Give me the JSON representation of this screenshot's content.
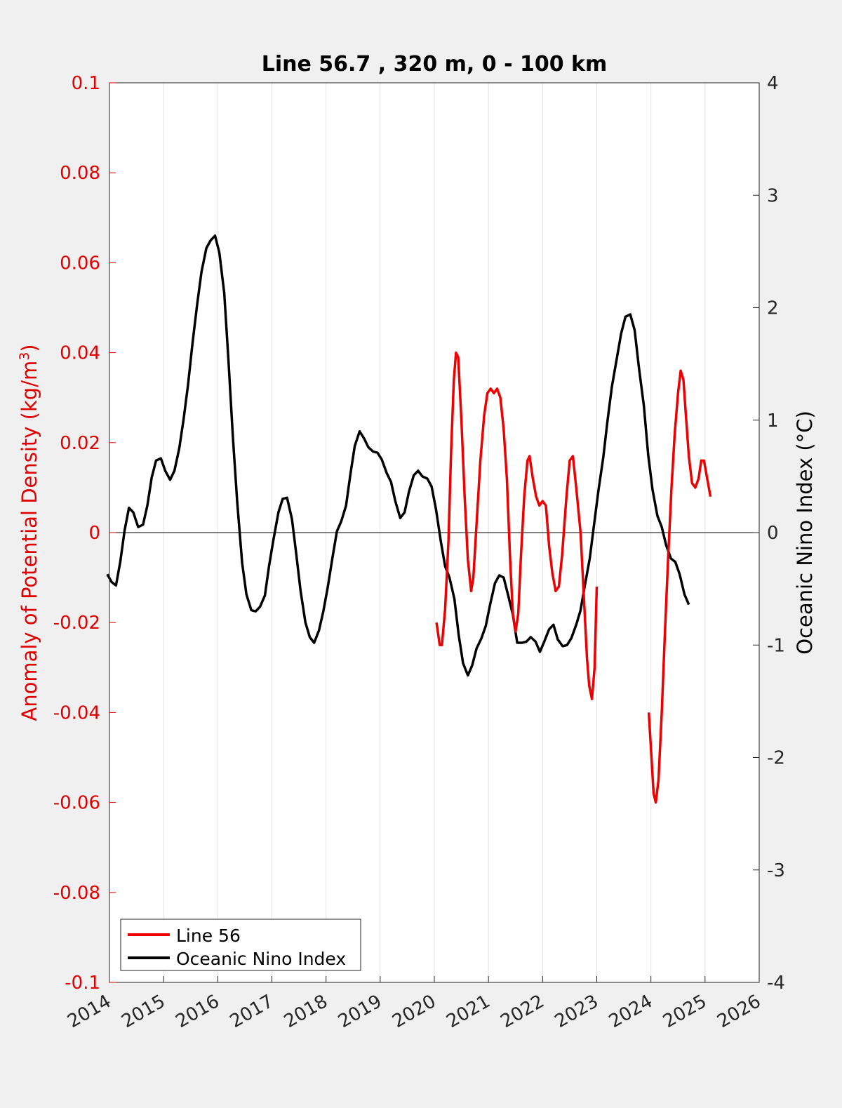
{
  "chart_data": {
    "type": "line",
    "title": "Line 56.7 , 320 m, 0 - 100 km",
    "ylabel_left": "Anomaly of Potential Density (kg/m³)",
    "ylabel_left_base": "Anomaly of Potential Density (kg/m",
    "ylabel_left_sup": "3",
    "ylabel_left_close": ")",
    "ylabel_right": "Oceanic Nino Index (°C)",
    "xlim": [
      2014,
      2026
    ],
    "ylim_left": [
      -0.1,
      0.1
    ],
    "ylim_right": [
      -4,
      4
    ],
    "x_ticks": [
      "2014",
      "2015",
      "2016",
      "2017",
      "2018",
      "2019",
      "2020",
      "2021",
      "2022",
      "2023",
      "2024",
      "2025",
      "2026"
    ],
    "y_left_ticks": [
      "0.1",
      "0.08",
      "0.06",
      "0.04",
      "0.02",
      "0",
      "-0.02",
      "-0.04",
      "-0.06",
      "-0.08",
      "-0.1"
    ],
    "y_right_ticks": [
      "4",
      "3",
      "2",
      "1",
      "0",
      "-1",
      "-2",
      "-3",
      "-4"
    ],
    "grid": "vertical",
    "legend_position": "bottom-left",
    "colors": {
      "left_axis": "#e00000",
      "line56": "#ee0000",
      "oni": "#000000"
    },
    "series": [
      {
        "name": "Line 56",
        "axis": "left",
        "segments": [
          [
            [
              2020.04,
              -0.02
            ],
            [
              2020.1,
              -0.025
            ],
            [
              2020.14,
              -0.025
            ],
            [
              2020.2,
              -0.017
            ],
            [
              2020.26,
              -0.002
            ],
            [
              2020.31,
              0.018
            ],
            [
              2020.36,
              0.034
            ],
            [
              2020.4,
              0.04
            ],
            [
              2020.44,
              0.039
            ],
            [
              2020.5,
              0.025
            ],
            [
              2020.56,
              0.008
            ],
            [
              2020.62,
              -0.006
            ],
            [
              2020.68,
              -0.013
            ],
            [
              2020.72,
              -0.01
            ],
            [
              2020.78,
              0.002
            ],
            [
              2020.85,
              0.016
            ],
            [
              2020.92,
              0.026
            ],
            [
              2020.98,
              0.031
            ],
            [
              2021.04,
              0.032
            ],
            [
              2021.1,
              0.031
            ],
            [
              2021.16,
              0.032
            ],
            [
              2021.22,
              0.03
            ],
            [
              2021.28,
              0.023
            ],
            [
              2021.34,
              0.012
            ],
            [
              2021.4,
              -0.006
            ],
            [
              2021.45,
              -0.018
            ],
            [
              2021.5,
              -0.022
            ],
            [
              2021.55,
              -0.018
            ],
            [
              2021.6,
              -0.005
            ],
            [
              2021.66,
              0.008
            ],
            [
              2021.72,
              0.016
            ],
            [
              2021.76,
              0.017
            ],
            [
              2021.82,
              0.012
            ],
            [
              2021.88,
              0.008
            ],
            [
              2021.94,
              0.006
            ],
            [
              2022.0,
              0.007
            ],
            [
              2022.06,
              0.006
            ],
            [
              2022.12,
              -0.003
            ],
            [
              2022.18,
              -0.009
            ],
            [
              2022.24,
              -0.013
            ],
            [
              2022.3,
              -0.012
            ],
            [
              2022.36,
              -0.005
            ],
            [
              2022.44,
              0.008
            ],
            [
              2022.5,
              0.016
            ],
            [
              2022.56,
              0.017
            ],
            [
              2022.62,
              0.01
            ],
            [
              2022.7,
              0.0
            ],
            [
              2022.76,
              -0.014
            ],
            [
              2022.82,
              -0.028
            ],
            [
              2022.86,
              -0.034
            ],
            [
              2022.91,
              -0.037
            ],
            [
              2022.96,
              -0.03
            ],
            [
              2023.0,
              -0.012
            ]
          ],
          [
            [
              2023.96,
              -0.04
            ],
            [
              2024.0,
              -0.048
            ],
            [
              2024.05,
              -0.058
            ],
            [
              2024.09,
              -0.06
            ],
            [
              2024.14,
              -0.055
            ],
            [
              2024.2,
              -0.04
            ],
            [
              2024.26,
              -0.022
            ],
            [
              2024.32,
              -0.005
            ],
            [
              2024.38,
              0.01
            ],
            [
              2024.44,
              0.022
            ],
            [
              2024.5,
              0.031
            ],
            [
              2024.55,
              0.036
            ],
            [
              2024.6,
              0.034
            ],
            [
              2024.64,
              0.027
            ],
            [
              2024.7,
              0.017
            ],
            [
              2024.76,
              0.011
            ],
            [
              2024.82,
              0.01
            ],
            [
              2024.88,
              0.012
            ],
            [
              2024.93,
              0.016
            ],
            [
              2024.98,
              0.016
            ],
            [
              2025.04,
              0.012
            ],
            [
              2025.1,
              0.008
            ]
          ]
        ]
      },
      {
        "name": "Oceanic Nino Index",
        "axis": "right",
        "points": [
          [
            2013.96,
            -0.37
          ],
          [
            2014.04,
            -0.44
          ],
          [
            2014.12,
            -0.47
          ],
          [
            2014.2,
            -0.26
          ],
          [
            2014.28,
            0.02
          ],
          [
            2014.36,
            0.22
          ],
          [
            2014.44,
            0.18
          ],
          [
            2014.53,
            0.05
          ],
          [
            2014.62,
            0.07
          ],
          [
            2014.7,
            0.24
          ],
          [
            2014.78,
            0.49
          ],
          [
            2014.86,
            0.64
          ],
          [
            2014.95,
            0.66
          ],
          [
            2015.03,
            0.55
          ],
          [
            2015.12,
            0.47
          ],
          [
            2015.2,
            0.55
          ],
          [
            2015.29,
            0.75
          ],
          [
            2015.37,
            1.01
          ],
          [
            2015.45,
            1.31
          ],
          [
            2015.53,
            1.67
          ],
          [
            2015.62,
            2.03
          ],
          [
            2015.7,
            2.32
          ],
          [
            2015.79,
            2.53
          ],
          [
            2015.87,
            2.6
          ],
          [
            2015.95,
            2.64
          ],
          [
            2016.03,
            2.49
          ],
          [
            2016.12,
            2.13
          ],
          [
            2016.2,
            1.51
          ],
          [
            2016.28,
            0.85
          ],
          [
            2016.36,
            0.27
          ],
          [
            2016.45,
            -0.27
          ],
          [
            2016.53,
            -0.55
          ],
          [
            2016.62,
            -0.69
          ],
          [
            2016.7,
            -0.7
          ],
          [
            2016.78,
            -0.66
          ],
          [
            2016.87,
            -0.56
          ],
          [
            2016.95,
            -0.29
          ],
          [
            2017.03,
            -0.06
          ],
          [
            2017.12,
            0.18
          ],
          [
            2017.2,
            0.3
          ],
          [
            2017.28,
            0.31
          ],
          [
            2017.37,
            0.12
          ],
          [
            2017.45,
            -0.19
          ],
          [
            2017.53,
            -0.52
          ],
          [
            2017.62,
            -0.8
          ],
          [
            2017.7,
            -0.93
          ],
          [
            2017.78,
            -0.98
          ],
          [
            2017.87,
            -0.87
          ],
          [
            2017.95,
            -0.7
          ],
          [
            2018.03,
            -0.49
          ],
          [
            2018.12,
            -0.22
          ],
          [
            2018.2,
            0.01
          ],
          [
            2018.28,
            0.1
          ],
          [
            2018.37,
            0.24
          ],
          [
            2018.45,
            0.52
          ],
          [
            2018.53,
            0.77
          ],
          [
            2018.62,
            0.9
          ],
          [
            2018.7,
            0.84
          ],
          [
            2018.78,
            0.76
          ],
          [
            2018.87,
            0.72
          ],
          [
            2018.95,
            0.71
          ],
          [
            2019.03,
            0.65
          ],
          [
            2019.12,
            0.53
          ],
          [
            2019.2,
            0.45
          ],
          [
            2019.28,
            0.28
          ],
          [
            2019.37,
            0.13
          ],
          [
            2019.45,
            0.18
          ],
          [
            2019.53,
            0.36
          ],
          [
            2019.62,
            0.51
          ],
          [
            2019.7,
            0.55
          ],
          [
            2019.78,
            0.5
          ],
          [
            2019.87,
            0.48
          ],
          [
            2019.95,
            0.41
          ],
          [
            2020.03,
            0.21
          ],
          [
            2020.12,
            -0.08
          ],
          [
            2020.2,
            -0.3
          ],
          [
            2020.28,
            -0.4
          ],
          [
            2020.37,
            -0.59
          ],
          [
            2020.45,
            -0.91
          ],
          [
            2020.53,
            -1.16
          ],
          [
            2020.62,
            -1.27
          ],
          [
            2020.7,
            -1.18
          ],
          [
            2020.78,
            -1.03
          ],
          [
            2020.87,
            -0.94
          ],
          [
            2020.95,
            -0.83
          ],
          [
            2021.03,
            -0.64
          ],
          [
            2021.12,
            -0.45
          ],
          [
            2021.2,
            -0.38
          ],
          [
            2021.28,
            -0.4
          ],
          [
            2021.37,
            -0.57
          ],
          [
            2021.45,
            -0.73
          ],
          [
            2021.53,
            -0.98
          ],
          [
            2021.62,
            -0.98
          ],
          [
            2021.7,
            -0.97
          ],
          [
            2021.78,
            -0.93
          ],
          [
            2021.87,
            -0.97
          ],
          [
            2021.95,
            -1.06
          ],
          [
            2022.03,
            -0.97
          ],
          [
            2022.12,
            -0.86
          ],
          [
            2022.2,
            -0.82
          ],
          [
            2022.28,
            -0.95
          ],
          [
            2022.37,
            -1.01
          ],
          [
            2022.45,
            -1.0
          ],
          [
            2022.53,
            -0.94
          ],
          [
            2022.62,
            -0.82
          ],
          [
            2022.7,
            -0.69
          ],
          [
            2022.78,
            -0.47
          ],
          [
            2022.87,
            -0.23
          ],
          [
            2022.95,
            0.07
          ],
          [
            2023.03,
            0.37
          ],
          [
            2023.12,
            0.67
          ],
          [
            2023.2,
            1.0
          ],
          [
            2023.28,
            1.3
          ],
          [
            2023.37,
            1.55
          ],
          [
            2023.45,
            1.77
          ],
          [
            2023.53,
            1.92
          ],
          [
            2023.62,
            1.94
          ],
          [
            2023.7,
            1.8
          ],
          [
            2023.78,
            1.46
          ],
          [
            2023.87,
            1.13
          ],
          [
            2023.95,
            0.69
          ],
          [
            2024.03,
            0.38
          ],
          [
            2024.12,
            0.15
          ],
          [
            2024.2,
            0.05
          ],
          [
            2024.28,
            -0.11
          ],
          [
            2024.37,
            -0.23
          ],
          [
            2024.45,
            -0.26
          ],
          [
            2024.53,
            -0.37
          ],
          [
            2024.62,
            -0.55
          ],
          [
            2024.7,
            -0.64
          ]
        ]
      }
    ]
  }
}
